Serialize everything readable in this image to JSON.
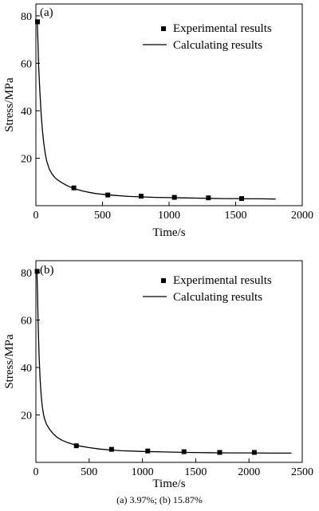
{
  "caption": "(a) 3.97%; (b) 15.87%",
  "chart_data": [
    {
      "type": "scatter",
      "panel_label": "(a)",
      "xlabel": "Time/s",
      "ylabel": "Stress/MPa",
      "xlim": [
        0,
        2000
      ],
      "ylim": [
        0,
        85
      ],
      "xticks": [
        0,
        500,
        1000,
        1500,
        2000
      ],
      "yticks": [
        20,
        40,
        60,
        80
      ],
      "legend_position": "top-right",
      "series": [
        {
          "name": "Experimental results",
          "kind": "scatter",
          "marker": "square",
          "x": [
            12,
            285,
            540,
            790,
            1040,
            1295,
            1545
          ],
          "y": [
            77.5,
            7.5,
            4.5,
            4.0,
            3.5,
            3.3,
            3.0
          ]
        },
        {
          "name": "Calculating results",
          "kind": "line",
          "x": [
            10,
            15,
            20,
            30,
            40,
            50,
            60,
            70,
            80,
            100,
            120,
            140,
            160,
            180,
            200,
            230,
            260,
            300,
            350,
            400,
            450,
            500,
            600,
            700,
            800,
            900,
            1000,
            1100,
            1200,
            1300,
            1400,
            1500,
            1600,
            1700,
            1800
          ],
          "y": [
            77.5,
            70,
            60,
            48,
            38,
            31,
            26,
            22,
            19,
            15.5,
            13.5,
            12,
            11,
            10.2,
            9.5,
            8.6,
            7.8,
            7.0,
            6.2,
            5.6,
            5.1,
            4.8,
            4.3,
            3.9,
            3.7,
            3.5,
            3.4,
            3.3,
            3.2,
            3.1,
            3.0,
            3.0,
            2.9,
            2.9,
            2.8
          ]
        }
      ]
    },
    {
      "type": "scatter",
      "panel_label": "(b)",
      "xlabel": "Time/s",
      "ylabel": "Stress/MPa",
      "xlim": [
        0,
        2500
      ],
      "ylim": [
        0,
        85
      ],
      "xticks": [
        0,
        500,
        1000,
        1500,
        2000,
        2500
      ],
      "yticks": [
        20,
        40,
        60,
        80
      ],
      "legend_position": "top-right",
      "series": [
        {
          "name": "Experimental results",
          "kind": "scatter",
          "marker": "square",
          "x": [
            12,
            380,
            710,
            1050,
            1390,
            1725,
            2050
          ],
          "y": [
            80.5,
            7.0,
            5.5,
            4.8,
            4.5,
            4.2,
            4.2
          ]
        },
        {
          "name": "Calculating results",
          "kind": "line",
          "x": [
            10,
            15,
            20,
            30,
            40,
            50,
            60,
            70,
            80,
            100,
            130,
            160,
            200,
            250,
            300,
            350,
            400,
            500,
            600,
            700,
            800,
            1000,
            1200,
            1400,
            1600,
            1800,
            2000,
            2200,
            2400
          ],
          "y": [
            80.5,
            72,
            60,
            45,
            35,
            28,
            23.5,
            20.5,
            18.5,
            16,
            13.8,
            12.2,
            10.5,
            9.2,
            8.3,
            7.6,
            7.0,
            6.2,
            5.6,
            5.2,
            4.9,
            4.6,
            4.4,
            4.2,
            4.1,
            4.0,
            4.0,
            3.9,
            3.9
          ]
        }
      ]
    }
  ]
}
